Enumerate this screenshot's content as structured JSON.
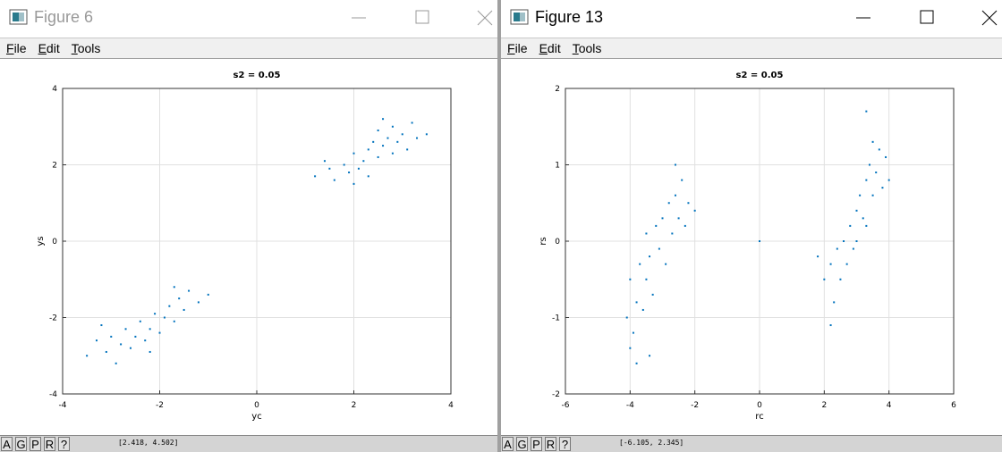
{
  "windows": [
    {
      "title": "Figure 6",
      "active": false,
      "menu": [
        "File",
        "Edit",
        "Tools"
      ],
      "status_buttons": [
        "A",
        "G",
        "P",
        "R",
        "?"
      ],
      "status": "[2.418, 4.502]"
    },
    {
      "title": "Figure 13",
      "active": true,
      "menu": [
        "File",
        "Edit",
        "Tools"
      ],
      "status_buttons": [
        "A",
        "G",
        "P",
        "R",
        "?"
      ],
      "status": "[-6.105, 2.345]"
    }
  ],
  "chart_data": [
    {
      "type": "scatter",
      "title": "s2 = 0.05",
      "x_label": "yc",
      "y_label": "ys",
      "color": "#0072bd",
      "grid": true,
      "xlim": [
        -4,
        4
      ],
      "xticks": [
        -4,
        -2,
        0,
        2,
        4
      ],
      "ylim": [
        -4,
        4
      ],
      "yticks": [
        -4,
        -2,
        0,
        2,
        4
      ],
      "x": [
        1.2,
        1.5,
        1.6,
        1.8,
        1.9,
        2.0,
        2.1,
        2.2,
        2.3,
        2.3,
        2.4,
        2.5,
        2.5,
        2.6,
        2.7,
        2.8,
        2.8,
        2.9,
        3.0,
        3.1,
        3.2,
        3.3,
        3.5,
        1.4,
        2.0,
        2.6,
        -3.5,
        -3.3,
        -3.1,
        -3.0,
        -2.9,
        -2.8,
        -2.7,
        -2.6,
        -2.5,
        -2.4,
        -2.3,
        -2.2,
        -2.1,
        -2.0,
        -1.9,
        -1.8,
        -1.7,
        -1.6,
        -1.5,
        -1.4,
        -1.2,
        -1.0,
        -3.2,
        -2.2,
        -1.7
      ],
      "values": [
        1.7,
        1.9,
        1.6,
        2.0,
        1.8,
        2.3,
        1.9,
        2.1,
        2.4,
        1.7,
        2.6,
        2.2,
        2.9,
        2.5,
        2.7,
        2.3,
        3.0,
        2.6,
        2.8,
        2.4,
        3.1,
        2.7,
        2.8,
        2.1,
        1.5,
        3.2,
        -3.0,
        -2.6,
        -2.9,
        -2.5,
        -3.2,
        -2.7,
        -2.3,
        -2.8,
        -2.5,
        -2.1,
        -2.6,
        -2.3,
        -1.9,
        -2.4,
        -2.0,
        -1.7,
        -2.1,
        -1.5,
        -1.8,
        -1.3,
        -1.6,
        -1.4,
        -2.2,
        -2.9,
        -1.2
      ]
    },
    {
      "type": "scatter",
      "title": "s2 = 0.05",
      "x_label": "rc",
      "y_label": "rs",
      "color": "#0072bd",
      "grid": true,
      "xlim": [
        -6,
        6
      ],
      "xticks": [
        -6,
        -4,
        -2,
        0,
        2,
        4,
        6
      ],
      "ylim": [
        -2,
        2
      ],
      "yticks": [
        -2,
        -1,
        0,
        1,
        2
      ],
      "x": [
        -4.1,
        -4.0,
        -4.0,
        -3.9,
        -3.8,
        -3.7,
        -3.6,
        -3.5,
        -3.5,
        -3.4,
        -3.3,
        -3.2,
        -3.1,
        -3.0,
        -2.9,
        -2.8,
        -2.7,
        -2.6,
        -2.5,
        -2.4,
        -2.3,
        -2.2,
        -2.0,
        -3.8,
        -3.4,
        -2.6,
        1.8,
        2.0,
        2.2,
        2.3,
        2.4,
        2.5,
        2.6,
        2.7,
        2.8,
        2.9,
        3.0,
        3.0,
        3.1,
        3.2,
        3.3,
        3.3,
        3.4,
        3.5,
        3.5,
        3.6,
        3.7,
        3.8,
        3.9,
        4.0,
        3.3,
        2.2,
        0
      ],
      "values": [
        -1.0,
        -1.4,
        -0.5,
        -1.2,
        -0.8,
        -0.3,
        -0.9,
        -0.5,
        0.1,
        -0.2,
        -0.7,
        0.2,
        -0.1,
        0.3,
        -0.3,
        0.5,
        0.1,
        0.6,
        0.3,
        0.8,
        0.2,
        0.5,
        0.4,
        -1.6,
        -1.5,
        1.0,
        -0.2,
        -0.5,
        -0.3,
        -0.8,
        -0.1,
        -0.5,
        0.0,
        -0.3,
        0.2,
        -0.1,
        0.4,
        0.0,
        0.6,
        0.3,
        0.8,
        0.2,
        1.0,
        0.6,
        1.3,
        0.9,
        1.2,
        0.7,
        1.1,
        0.8,
        1.7,
        -1.1,
        0
      ]
    }
  ]
}
